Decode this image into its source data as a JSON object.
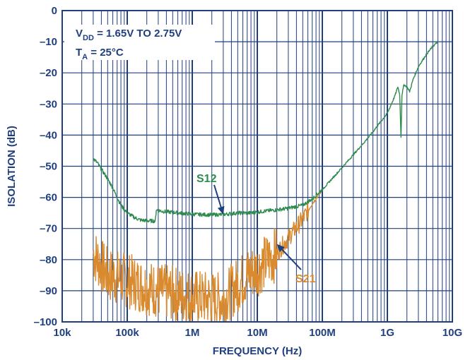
{
  "chart_data": {
    "type": "line",
    "title": "",
    "xlabel": "FREQUENCY (Hz)",
    "ylabel": "ISOLATION (dB)",
    "x_scale": "log",
    "xlim": [
      10000,
      10000000000
    ],
    "ylim": [
      -100,
      0
    ],
    "x_ticks": [
      {
        "value": 10000,
        "label": "10k"
      },
      {
        "value": 100000,
        "label": "100k"
      },
      {
        "value": 1000000,
        "label": "1M"
      },
      {
        "value": 10000000,
        "label": "10M"
      },
      {
        "value": 100000000,
        "label": "100M"
      },
      {
        "value": 1000000000,
        "label": "1G"
      },
      {
        "value": 10000000000,
        "label": "10G"
      }
    ],
    "y_ticks": [
      {
        "value": 0,
        "label": "0"
      },
      {
        "value": -10,
        "label": "–10"
      },
      {
        "value": -20,
        "label": "–20"
      },
      {
        "value": -30,
        "label": "–30"
      },
      {
        "value": -40,
        "label": "–40"
      },
      {
        "value": -50,
        "label": "–50"
      },
      {
        "value": -60,
        "label": "–60"
      },
      {
        "value": -70,
        "label": "–70"
      },
      {
        "value": -80,
        "label": "–80"
      },
      {
        "value": -90,
        "label": "–90"
      },
      {
        "value": -100,
        "label": "–100"
      }
    ],
    "grid": true,
    "conditions": {
      "line1_main": "V",
      "line1_sub": "DD",
      "line1_rest": " = 1.65V TO 2.75V",
      "line2_main": "T",
      "line2_sub": "A",
      "line2_rest": " = 25°C"
    },
    "series": [
      {
        "name": "S12",
        "color": "#2e8b4e",
        "points": [
          [
            30000,
            -47.5
          ],
          [
            35000,
            -49
          ],
          [
            40000,
            -51
          ],
          [
            50000,
            -54
          ],
          [
            60000,
            -57
          ],
          [
            70000,
            -60
          ],
          [
            80000,
            -62.5
          ],
          [
            100000,
            -65
          ],
          [
            130000,
            -66.5
          ],
          [
            160000,
            -67.3
          ],
          [
            200000,
            -67.5
          ],
          [
            270000,
            -67.6
          ],
          [
            280000,
            -64
          ],
          [
            350000,
            -64.5
          ],
          [
            500000,
            -64.8
          ],
          [
            800000,
            -65.2
          ],
          [
            1200000,
            -65.5
          ],
          [
            2000000,
            -65.6
          ],
          [
            3000000,
            -65.5
          ],
          [
            5000000,
            -65
          ],
          [
            8000000,
            -65
          ],
          [
            12000000,
            -64.5
          ],
          [
            20000000,
            -64
          ],
          [
            30000000,
            -63.5
          ],
          [
            50000000,
            -62.5
          ],
          [
            70000000,
            -60.5
          ],
          [
            100000000,
            -57.5
          ]
        ]
      },
      {
        "name": "S21",
        "color": "#d98a2e",
        "points": [
          [
            30000,
            -78
          ],
          [
            50000,
            -85
          ],
          [
            80000,
            -86
          ],
          [
            150000,
            -88
          ],
          [
            300000,
            -90
          ],
          [
            1000000,
            -92
          ],
          [
            3000000,
            -93
          ],
          [
            5000000,
            -88
          ],
          [
            7000000,
            -85
          ],
          [
            10000000,
            -83
          ],
          [
            15000000,
            -80
          ],
          [
            20000000,
            -78
          ],
          [
            30000000,
            -73
          ],
          [
            50000000,
            -67
          ],
          [
            70000000,
            -62
          ],
          [
            100000000,
            -57.5
          ]
        ]
      },
      {
        "name": "",
        "color": "#2e8b4e",
        "points": [
          [
            100000000,
            -57.5
          ],
          [
            200000000,
            -50.5
          ],
          [
            500000000,
            -41
          ],
          [
            1000000000,
            -33
          ],
          [
            1300000000,
            -27.5
          ],
          [
            1450000000,
            -24.5
          ],
          [
            1550000000,
            -27
          ],
          [
            1620000000,
            -40.5
          ],
          [
            1680000000,
            -27
          ],
          [
            1800000000,
            -23.8
          ],
          [
            2000000000,
            -24.5
          ],
          [
            2200000000,
            -26
          ],
          [
            2500000000,
            -22
          ],
          [
            3000000000,
            -18
          ],
          [
            4000000000,
            -14
          ],
          [
            5000000000,
            -11.5
          ],
          [
            6000000000,
            -10
          ]
        ]
      }
    ],
    "annotations": [
      {
        "text": "S12",
        "color": "#2e8b4e",
        "arrow_to": [
          3000000,
          -65.5
        ]
      },
      {
        "text": "S21",
        "color": "#d98a2e",
        "arrow_to": [
          20000000,
          -75
        ]
      }
    ]
  }
}
